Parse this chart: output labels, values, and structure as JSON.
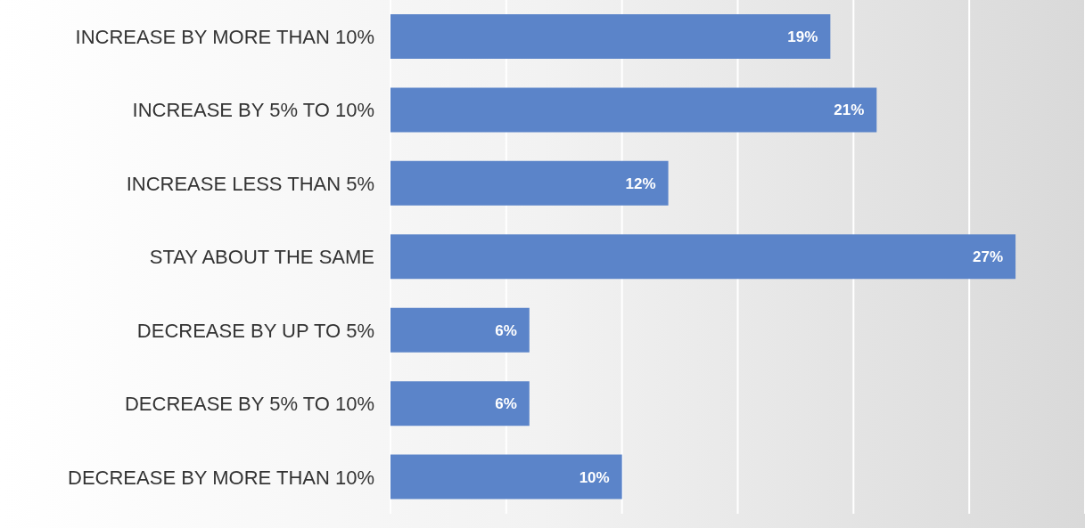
{
  "chart_data": {
    "type": "bar",
    "orientation": "horizontal",
    "categories": [
      "INCREASE BY MORE THAN 10%",
      "INCREASE BY 5% TO 10%",
      "INCREASE LESS THAN 5%",
      "STAY ABOUT THE SAME",
      "DECREASE BY UP TO 5%",
      "DECREASE BY 5% TO 10%",
      "DECREASE BY MORE THAN 10%"
    ],
    "values": [
      19,
      21,
      12,
      27,
      6,
      6,
      10
    ],
    "value_labels": [
      "19%",
      "21%",
      "12%",
      "27%",
      "6%",
      "6%",
      "10%"
    ],
    "color": "#5b84c9",
    "xlim": [
      0,
      30
    ],
    "xticks": [
      {
        "value": 0,
        "label": null
      },
      {
        "value": 5,
        "label": null
      },
      {
        "value": 10,
        "label": null
      },
      {
        "value": 15,
        "label": null
      },
      {
        "value": 20,
        "label": null
      },
      {
        "value": 25,
        "label": null
      },
      {
        "value": 30,
        "label": null
      }
    ],
    "grid": "x",
    "tick_labels": "y",
    "legend": false
  }
}
